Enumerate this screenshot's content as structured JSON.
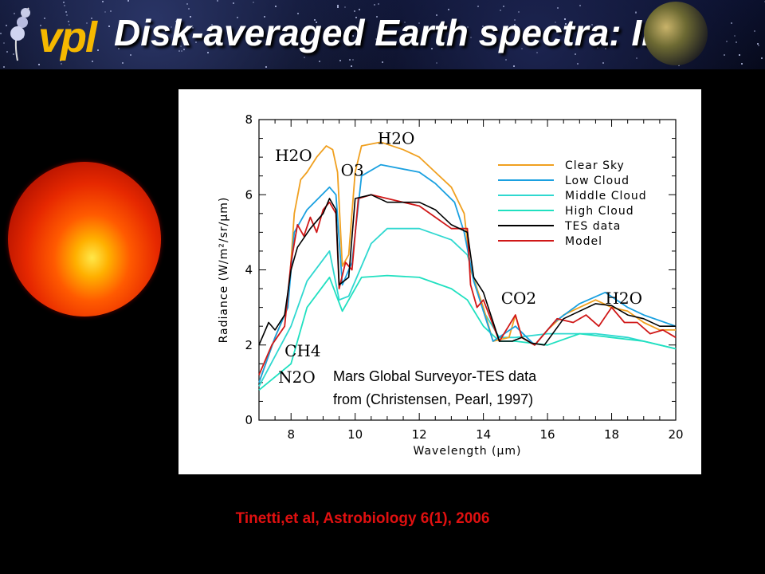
{
  "header": {
    "title": "Disk-averaged Earth spectra: IR",
    "logo_text": "vpl"
  },
  "citation": "Tinetti,et al, Astrobiology 6(1), 2006",
  "chart_data": {
    "type": "line",
    "xlabel": "Wavelength (μm)",
    "ylabel": "Radiance (W/m²/sr/μm)",
    "xlim": [
      7,
      20
    ],
    "ylim": [
      0,
      8
    ],
    "xticks": [
      8,
      10,
      12,
      14,
      16,
      18,
      20
    ],
    "yticks": [
      0,
      2,
      4,
      6,
      8
    ],
    "legend_position": "top-right",
    "series": [
      {
        "name": "Clear Sky",
        "color": "#f0a020",
        "x": [
          7,
          7.5,
          7.9,
          8.1,
          8.3,
          8.5,
          8.8,
          9.1,
          9.3,
          9.45,
          9.6,
          9.8,
          10.0,
          10.2,
          10.8,
          11.5,
          12,
          12.5,
          13.0,
          13.4,
          13.6,
          14.0,
          14.3,
          14.8,
          15.0,
          15.2,
          15.6,
          16.0,
          16.5,
          17,
          17.5,
          18,
          18.5,
          19,
          19.5,
          20
        ],
        "y": [
          1.0,
          2.2,
          3.0,
          5.5,
          6.4,
          6.6,
          7.0,
          7.3,
          7.2,
          6.6,
          4.1,
          4.4,
          6.6,
          7.3,
          7.4,
          7.2,
          7.0,
          6.6,
          6.2,
          5.5,
          4.0,
          3.0,
          2.1,
          2.2,
          2.8,
          2.2,
          2.0,
          2.4,
          2.8,
          3.0,
          3.2,
          3.0,
          2.9,
          2.6,
          2.4,
          2.4
        ]
      },
      {
        "name": "Low Cloud",
        "color": "#1aa0e0",
        "x": [
          7,
          7.5,
          7.9,
          8.1,
          8.5,
          9.2,
          9.4,
          9.6,
          9.9,
          10.2,
          10.8,
          12,
          12.5,
          13.1,
          13.4,
          13.7,
          14.3,
          15,
          15.6,
          16.2,
          17,
          17.8,
          18.5,
          19,
          20
        ],
        "y": [
          1.0,
          2.2,
          3.0,
          5.0,
          5.6,
          6.2,
          6.0,
          3.6,
          4.2,
          6.5,
          6.8,
          6.6,
          6.3,
          5.8,
          5.0,
          3.7,
          2.1,
          2.5,
          2.0,
          2.6,
          3.1,
          3.4,
          3.0,
          2.8,
          2.5
        ]
      },
      {
        "name": "Middle Cloud",
        "color": "#30d8d0",
        "x": [
          7,
          8,
          8.5,
          9.2,
          9.5,
          9.8,
          10.5,
          11,
          12,
          13,
          13.5,
          14,
          14.5,
          15,
          16,
          16.5,
          17.5,
          18.5,
          20
        ],
        "y": [
          0.9,
          2.5,
          3.7,
          4.5,
          3.2,
          3.3,
          4.7,
          5.1,
          5.1,
          4.8,
          4.4,
          2.9,
          2.2,
          2.2,
          2.3,
          2.3,
          2.3,
          2.2,
          1.9
        ]
      },
      {
        "name": "High Cloud",
        "color": "#20e0c0",
        "x": [
          7,
          8,
          8.5,
          9.2,
          9.6,
          10.2,
          11,
          12,
          13,
          13.5,
          14,
          14.5,
          15,
          16,
          17,
          18,
          19,
          20
        ],
        "y": [
          0.8,
          1.5,
          3.0,
          3.8,
          2.9,
          3.8,
          3.85,
          3.8,
          3.5,
          3.2,
          2.5,
          2.1,
          2.1,
          2.0,
          2.3,
          2.2,
          2.1,
          1.9
        ]
      },
      {
        "name": "TES data",
        "color": "#000000",
        "x": [
          7,
          7.3,
          7.5,
          7.8,
          8.0,
          8.2,
          8.6,
          9.0,
          9.2,
          9.4,
          9.5,
          9.8,
          10.0,
          10.5,
          11.0,
          12.0,
          12.5,
          13.0,
          13.5,
          13.7,
          14.0,
          14.5,
          14.9,
          15.2,
          15.5,
          15.9,
          16.5,
          17,
          17.5,
          18,
          18.5,
          19,
          19.5,
          20
        ],
        "y": [
          2.0,
          2.6,
          2.4,
          2.8,
          4.0,
          4.6,
          5.1,
          5.5,
          5.9,
          5.6,
          3.6,
          3.8,
          5.9,
          6.0,
          5.8,
          5.8,
          5.6,
          5.2,
          5.0,
          3.8,
          3.4,
          2.1,
          2.1,
          2.2,
          2.05,
          2.0,
          2.7,
          2.9,
          3.1,
          3.05,
          2.8,
          2.7,
          2.5,
          2.5
        ]
      },
      {
        "name": "Model",
        "color": "#d01818",
        "x": [
          7,
          7.4,
          7.8,
          8.0,
          8.2,
          8.4,
          8.6,
          8.8,
          9.0,
          9.2,
          9.4,
          9.5,
          9.7,
          9.9,
          10.1,
          10.5,
          11,
          11.5,
          12,
          12.5,
          13,
          13.5,
          13.6,
          13.8,
          14.0,
          14.5,
          15.0,
          15.2,
          15.6,
          16.0,
          16.3,
          16.8,
          17.2,
          17.6,
          18,
          18.4,
          18.8,
          19.2,
          19.6,
          20
        ],
        "y": [
          1.2,
          2.0,
          2.5,
          4.2,
          5.2,
          4.9,
          5.4,
          5.0,
          5.6,
          5.8,
          5.5,
          3.5,
          4.2,
          4.0,
          5.9,
          6.0,
          5.9,
          5.8,
          5.7,
          5.4,
          5.1,
          5.1,
          3.6,
          3.0,
          3.2,
          2.1,
          2.8,
          2.2,
          2.0,
          2.4,
          2.7,
          2.6,
          2.8,
          2.5,
          3.0,
          2.6,
          2.6,
          2.3,
          2.4,
          2.2
        ]
      }
    ],
    "annotations": [
      {
        "text": "H2O",
        "x": 7.5,
        "y": 6.9
      },
      {
        "text": "O3",
        "x": 9.55,
        "y": 6.5
      },
      {
        "text": "H2O",
        "x": 10.7,
        "y": 7.35
      },
      {
        "text": "CO2",
        "x": 14.55,
        "y": 3.1
      },
      {
        "text": "H2O",
        "x": 17.8,
        "y": 3.1
      },
      {
        "text": "CH4",
        "x": 7.8,
        "y": 1.7
      },
      {
        "text": "N2O",
        "x": 7.6,
        "y": 1.0
      }
    ],
    "source_note": [
      "Mars Global Surveyor-TES data",
      "from (Christensen, Pearl, 1997)"
    ]
  }
}
